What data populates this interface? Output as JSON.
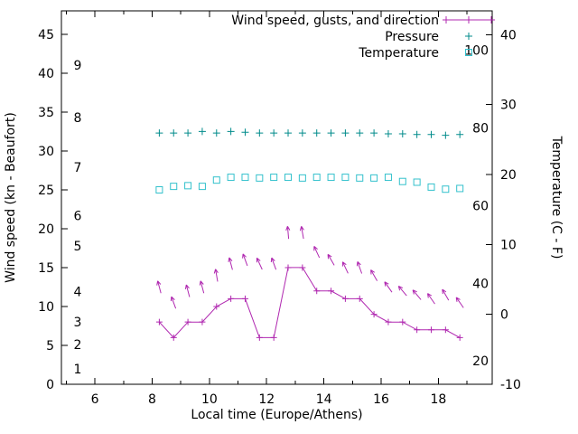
{
  "axes": {
    "xlabel": "Local time (Europe/Athens)",
    "ylabel_left": "Wind speed (kn - Beaufort)",
    "ylabel_right": "Temperature (C - F)"
  },
  "legend": [
    {
      "label": "Wind speed, gusts, and direction",
      "series": "wind",
      "color": "#B028B0",
      "marker": "line-plus"
    },
    {
      "label": "Pressure",
      "series": "pressure",
      "color": "#008B8B",
      "marker": "plus"
    },
    {
      "label": "Temperature",
      "series": "temperature",
      "color": "#33C1CC",
      "marker": "open-square"
    }
  ],
  "colors": {
    "wind": "#B028B0",
    "pressure": "#008B8B",
    "temperature": "#33C1CC",
    "axis": "#000000",
    "background": "#FFFFFF"
  },
  "chart_data": {
    "type": "line",
    "title": "",
    "xlabel": "Local time (Europe/Athens)",
    "ylabel_left": "Wind speed (kn - Beaufort)",
    "ylabel_right": "Temperature (C - F)",
    "grid": false,
    "legend_position": "top-right-inside",
    "x_range": [
      4.83,
      19.88
    ],
    "x_ticks": [
      6,
      8,
      10,
      12,
      14,
      16,
      18
    ],
    "x_minor_ticks_every_hours": 1,
    "kn_range": [
      0,
      48
    ],
    "kn_ticks": [
      0,
      5,
      10,
      15,
      20,
      25,
      30,
      35,
      40,
      45
    ],
    "beaufort_ticks": [
      {
        "label": "1",
        "kn": 2.0
      },
      {
        "label": "2",
        "kn": 5.1
      },
      {
        "label": "3",
        "kn": 8.0
      },
      {
        "label": "4",
        "kn": 11.9
      },
      {
        "label": "5",
        "kn": 17.8
      },
      {
        "label": "6",
        "kn": 21.7
      },
      {
        "label": "7",
        "kn": 27.9
      },
      {
        "label": "8",
        "kn": 34.3
      },
      {
        "label": "9",
        "kn": 41.0
      }
    ],
    "c_range": [
      -10,
      43.4
    ],
    "c_ticks": [
      -10,
      0,
      10,
      20,
      30,
      40
    ],
    "f_ticks": [
      20,
      40,
      60,
      80,
      100
    ],
    "x": [
      8.25,
      8.75,
      9.25,
      9.75,
      10.25,
      10.75,
      11.25,
      11.75,
      12.25,
      12.75,
      13.25,
      13.75,
      14.25,
      14.75,
      15.25,
      15.75,
      16.25,
      16.75,
      17.25,
      17.75,
      18.25,
      18.75
    ],
    "wind_kn": [
      8,
      6,
      8,
      8,
      10,
      11,
      11,
      6,
      6,
      15,
      15,
      12,
      12,
      11,
      11,
      9,
      8,
      8,
      7,
      7,
      7,
      6
    ],
    "gust_kn": [
      12.5,
      10.5,
      12,
      12.5,
      14,
      15.5,
      16,
      15.5,
      15.5,
      19.5,
      19.5,
      17,
      16,
      15,
      15,
      14,
      12.5,
      12,
      11.5,
      11,
      11.5,
      10.5
    ],
    "direction_deg": [
      -15,
      -20,
      -15,
      -15,
      -10,
      -15,
      -20,
      -25,
      -20,
      -5,
      -10,
      -25,
      -30,
      -25,
      -20,
      -30,
      -35,
      -40,
      -40,
      -35,
      -30,
      -35
    ],
    "pressure_kn": [
      32.3,
      32.3,
      32.3,
      32.5,
      32.3,
      32.5,
      32.4,
      32.3,
      32.3,
      32.3,
      32.3,
      32.3,
      32.3,
      32.3,
      32.3,
      32.3,
      32.2,
      32.2,
      32.1,
      32.1,
      32.0,
      32.1
    ],
    "temperature_c": [
      17.8,
      18.3,
      18.4,
      18.3,
      19.2,
      19.6,
      19.6,
      19.5,
      19.6,
      19.6,
      19.5,
      19.6,
      19.6,
      19.6,
      19.5,
      19.5,
      19.6,
      19.0,
      18.9,
      18.2,
      17.9,
      18.0
    ]
  }
}
